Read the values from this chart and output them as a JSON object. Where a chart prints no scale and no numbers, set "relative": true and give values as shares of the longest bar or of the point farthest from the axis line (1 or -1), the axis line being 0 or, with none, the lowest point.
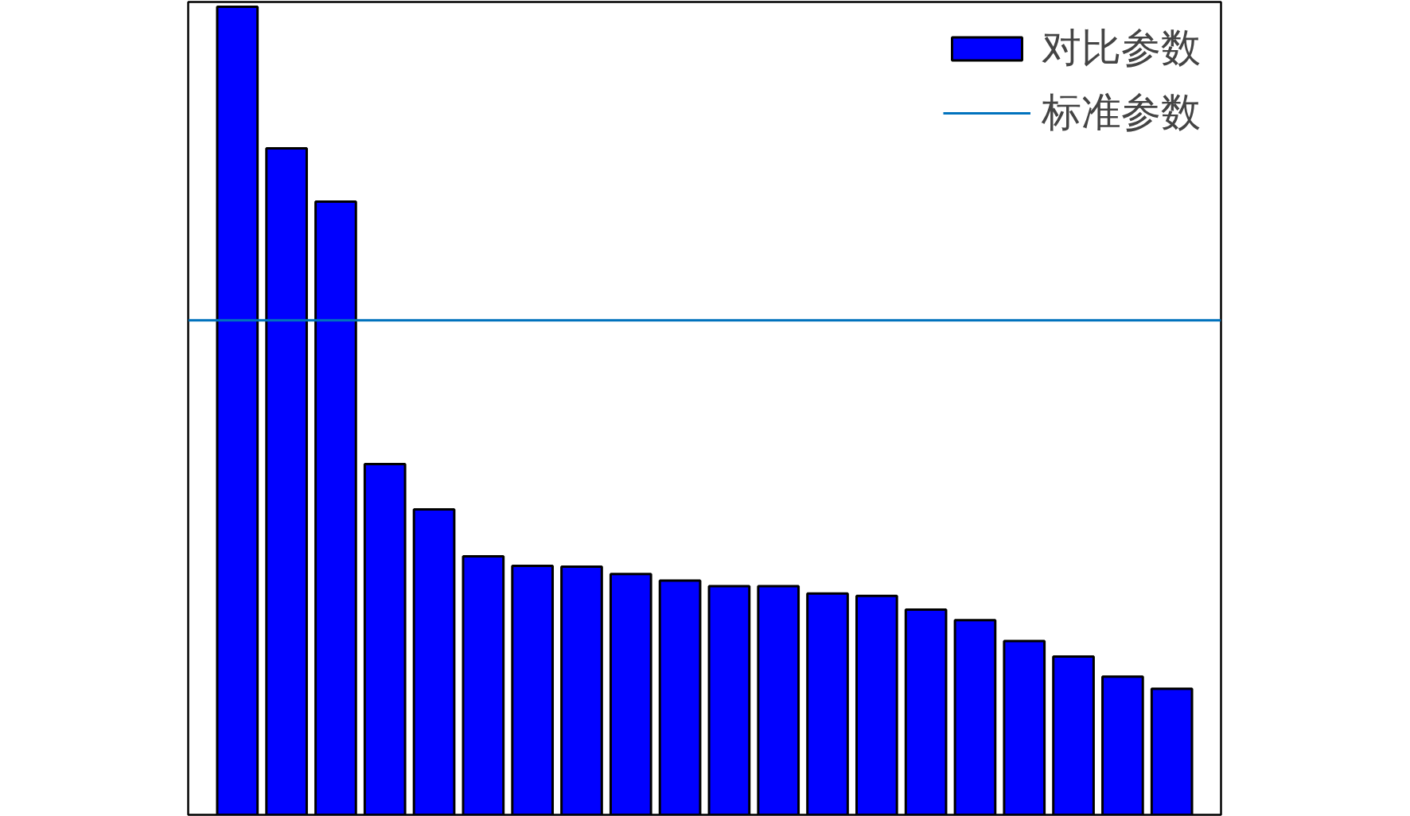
{
  "chart_data": {
    "type": "bar",
    "relative": true,
    "categories": [
      null,
      null,
      null,
      null,
      null,
      null,
      null,
      null,
      null,
      null,
      null,
      null,
      null,
      null,
      null,
      null,
      null,
      null,
      null,
      null
    ],
    "series": [
      {
        "name": "对比参数",
        "color": "#0000ff",
        "values": [
          1,
          0.825,
          0.759,
          0.434,
          0.378,
          0.32,
          0.308,
          0.307,
          0.298,
          0.29,
          0.283,
          0.283,
          0.274,
          0.271,
          0.254,
          0.241,
          0.215,
          0.196,
          0.171,
          0.156
        ]
      }
    ],
    "ref_lines": [
      {
        "axis": "y",
        "value": 0.612,
        "label": "标准参数",
        "color": "#0072bd"
      }
    ],
    "legend": "top right",
    "grid": false
  }
}
